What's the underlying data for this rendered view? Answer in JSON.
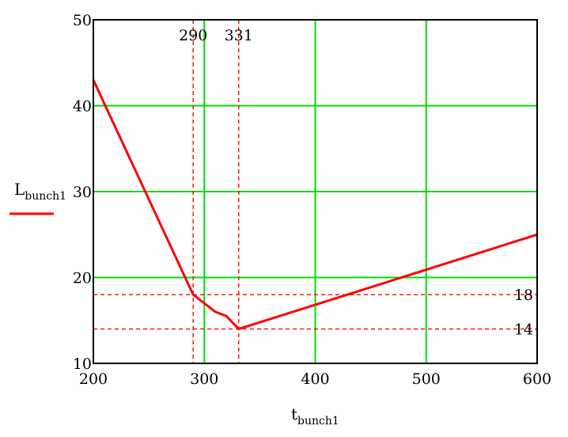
{
  "chart_data": {
    "type": "line",
    "xlabel": {
      "main": "t",
      "sub": "bunch1"
    },
    "ylabel": {
      "main": "L",
      "sub": "bunch1"
    },
    "xlim": [
      200,
      600
    ],
    "ylim": [
      10,
      50
    ],
    "xticks": [
      200,
      300,
      400,
      500,
      600
    ],
    "yticks": [
      10,
      20,
      30,
      40,
      50
    ],
    "grid": true,
    "colors": {
      "series": "#ff0000",
      "grid": "#00dd00",
      "frame": "#000000",
      "markers": "#ff0000"
    },
    "series": [
      {
        "x": [
          200,
          290,
          300,
          310,
          320,
          331,
          600
        ],
        "y": [
          43,
          18,
          17,
          16,
          15.5,
          14,
          25
        ]
      }
    ],
    "x_markers": [
      {
        "value": 290,
        "label": "290"
      },
      {
        "value": 331,
        "label": "331"
      }
    ],
    "y_markers": [
      {
        "value": 18,
        "label": "18"
      },
      {
        "value": 14,
        "label": "14"
      }
    ]
  }
}
